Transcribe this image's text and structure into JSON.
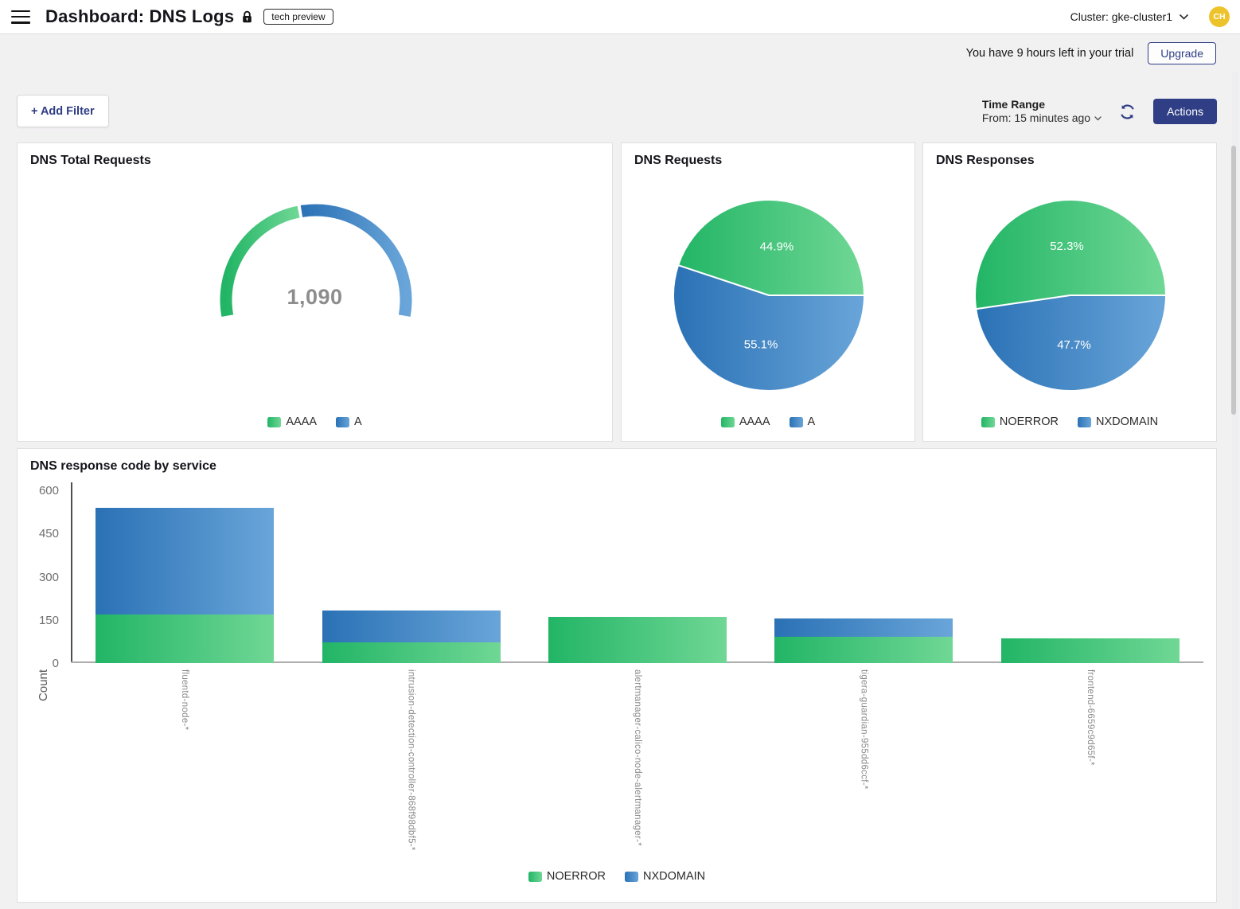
{
  "header": {
    "title": "Dashboard: DNS Logs",
    "badge": "tech preview",
    "cluster": "Cluster: gke-cluster1",
    "avatar": "CH"
  },
  "trial": {
    "message": "You have 9 hours left in your trial",
    "upgrade": "Upgrade"
  },
  "toolbar": {
    "add_filter": "+ Add Filter",
    "time_range_label": "Time Range",
    "time_range_value": "From: 15 minutes ago",
    "actions": "Actions"
  },
  "colors": {
    "navy": "#2f3e85",
    "green_dark": "#22b566",
    "green_light": "#70d795",
    "blue_dark": "#2a71b5",
    "blue_light": "#69a5d9",
    "avatar_bg": "#edc32c"
  },
  "chart_data": [
    {
      "id": "dns_total_requests",
      "type": "gauge",
      "title": "DNS Total Requests",
      "center_value": "1,090",
      "segments": [
        {
          "label": "AAAA",
          "percent": 44.9,
          "color": "green"
        },
        {
          "label": "A",
          "percent": 55.1,
          "color": "blue"
        }
      ]
    },
    {
      "id": "dns_requests",
      "type": "pie",
      "title": "DNS Requests",
      "legend_position": "bottom",
      "slices": [
        {
          "label": "AAAA",
          "percent": 44.9,
          "color": "green"
        },
        {
          "label": "A",
          "percent": 55.1,
          "color": "blue"
        }
      ]
    },
    {
      "id": "dns_responses",
      "type": "pie",
      "title": "DNS Responses",
      "legend_position": "bottom",
      "slices": [
        {
          "label": "NOERROR",
          "percent": 52.3,
          "color": "green"
        },
        {
          "label": "NXDOMAIN",
          "percent": 47.7,
          "color": "blue"
        }
      ]
    },
    {
      "id": "dns_response_code_by_service",
      "type": "bar",
      "stacked": true,
      "title": "DNS response code by service",
      "ylabel": "Count",
      "ylim": [
        0,
        600
      ],
      "yticks": [
        0,
        150,
        300,
        450,
        600
      ],
      "grid": false,
      "legend_position": "bottom",
      "categories": [
        "fluentd-node-*",
        "intrusion-detection-controller-868f98dbf5-*",
        "alertmanager-calico-node-alertmanager-*",
        "tigera-guardian-955dd6ccf-*",
        "frontend-6659c9d65f-*"
      ],
      "series": [
        {
          "name": "NOERROR",
          "color": "green",
          "values": [
            170,
            72,
            160,
            90,
            85
          ]
        },
        {
          "name": "NXDOMAIN",
          "color": "blue",
          "values": [
            370,
            110,
            0,
            65,
            0
          ]
        }
      ]
    }
  ]
}
